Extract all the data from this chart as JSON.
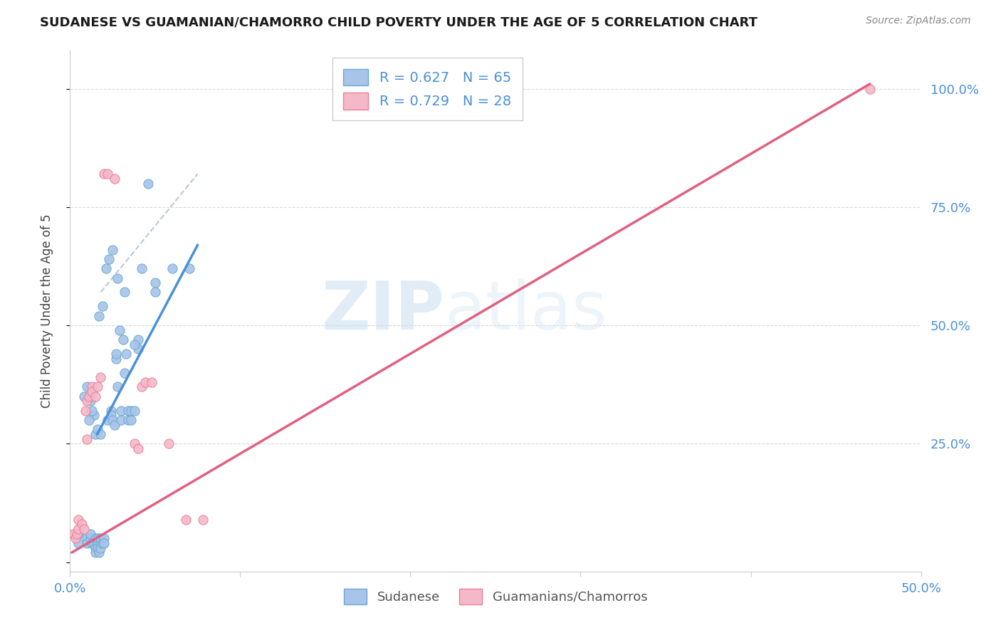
{
  "title": "SUDANESE VS GUAMANIAN/CHAMORRO CHILD POVERTY UNDER THE AGE OF 5 CORRELATION CHART",
  "source": "Source: ZipAtlas.com",
  "ylabel": "Child Poverty Under the Age of 5",
  "xlim": [
    0.0,
    0.5
  ],
  "ylim": [
    -0.02,
    1.08
  ],
  "watermark_zip": "ZIP",
  "watermark_atlas": "atlas",
  "sudanese_face_color": "#a8c4e8",
  "sudanese_edge_color": "#6aaad4",
  "guamanian_face_color": "#f5b8c8",
  "guamanian_edge_color": "#e8809a",
  "trend_blue_color": "#4a90d9",
  "trend_pink_color": "#e06080",
  "trend_dashed_color": "#b8c8d8",
  "sudanese_points": [
    [
      0.005,
      0.04
    ],
    [
      0.005,
      0.06
    ],
    [
      0.01,
      0.05
    ],
    [
      0.01,
      0.04
    ],
    [
      0.012,
      0.05
    ],
    [
      0.012,
      0.06
    ],
    [
      0.013,
      0.04
    ],
    [
      0.014,
      0.04
    ],
    [
      0.015,
      0.05
    ],
    [
      0.015,
      0.03
    ],
    [
      0.015,
      0.02
    ],
    [
      0.016,
      0.04
    ],
    [
      0.016,
      0.03
    ],
    [
      0.016,
      0.05
    ],
    [
      0.017,
      0.02
    ],
    [
      0.018,
      0.04
    ],
    [
      0.018,
      0.05
    ],
    [
      0.018,
      0.03
    ],
    [
      0.019,
      0.04
    ],
    [
      0.02,
      0.05
    ],
    [
      0.02,
      0.04
    ],
    [
      0.022,
      0.3
    ],
    [
      0.024,
      0.32
    ],
    [
      0.024,
      0.31
    ],
    [
      0.025,
      0.3
    ],
    [
      0.026,
      0.29
    ],
    [
      0.027,
      0.43
    ],
    [
      0.027,
      0.44
    ],
    [
      0.028,
      0.37
    ],
    [
      0.029,
      0.49
    ],
    [
      0.03,
      0.32
    ],
    [
      0.03,
      0.3
    ],
    [
      0.031,
      0.47
    ],
    [
      0.032,
      0.57
    ],
    [
      0.032,
      0.4
    ],
    [
      0.034,
      0.3
    ],
    [
      0.034,
      0.32
    ],
    [
      0.036,
      0.32
    ],
    [
      0.036,
      0.3
    ],
    [
      0.038,
      0.32
    ],
    [
      0.04,
      0.47
    ],
    [
      0.04,
      0.45
    ],
    [
      0.042,
      0.62
    ],
    [
      0.046,
      0.8
    ],
    [
      0.05,
      0.59
    ],
    [
      0.05,
      0.57
    ],
    [
      0.06,
      0.62
    ],
    [
      0.07,
      0.62
    ],
    [
      0.008,
      0.35
    ],
    [
      0.01,
      0.37
    ],
    [
      0.012,
      0.34
    ],
    [
      0.014,
      0.31
    ],
    [
      0.013,
      0.32
    ],
    [
      0.011,
      0.3
    ],
    [
      0.015,
      0.27
    ],
    [
      0.016,
      0.28
    ],
    [
      0.018,
      0.27
    ],
    [
      0.017,
      0.52
    ],
    [
      0.019,
      0.54
    ],
    [
      0.021,
      0.62
    ],
    [
      0.023,
      0.64
    ],
    [
      0.025,
      0.66
    ],
    [
      0.028,
      0.6
    ],
    [
      0.033,
      0.44
    ],
    [
      0.038,
      0.46
    ]
  ],
  "guamanian_points": [
    [
      0.002,
      0.06
    ],
    [
      0.003,
      0.05
    ],
    [
      0.004,
      0.06
    ],
    [
      0.005,
      0.07
    ],
    [
      0.005,
      0.09
    ],
    [
      0.007,
      0.08
    ],
    [
      0.008,
      0.07
    ],
    [
      0.009,
      0.32
    ],
    [
      0.01,
      0.34
    ],
    [
      0.011,
      0.35
    ],
    [
      0.013,
      0.37
    ],
    [
      0.013,
      0.36
    ],
    [
      0.015,
      0.35
    ],
    [
      0.016,
      0.37
    ],
    [
      0.018,
      0.39
    ],
    [
      0.02,
      0.82
    ],
    [
      0.022,
      0.82
    ],
    [
      0.026,
      0.81
    ],
    [
      0.038,
      0.25
    ],
    [
      0.04,
      0.24
    ],
    [
      0.042,
      0.37
    ],
    [
      0.044,
      0.38
    ],
    [
      0.048,
      0.38
    ],
    [
      0.058,
      0.25
    ],
    [
      0.068,
      0.09
    ],
    [
      0.078,
      0.09
    ],
    [
      0.47,
      1.0
    ],
    [
      0.01,
      0.26
    ]
  ],
  "blue_trend_x": [
    0.016,
    0.075
  ],
  "blue_trend_y": [
    0.27,
    0.67
  ],
  "pink_trend_x": [
    0.001,
    0.47
  ],
  "pink_trend_y": [
    0.02,
    1.01
  ],
  "dashed_trend_x": [
    0.018,
    0.075
  ],
  "dashed_trend_y": [
    0.57,
    0.82
  ],
  "xticks": [
    0.0,
    0.1,
    0.2,
    0.3,
    0.4,
    0.5
  ],
  "xticklabels": [
    "0.0%",
    "",
    "",
    "",
    "",
    "50.0%"
  ],
  "yticks_right": [
    0.25,
    0.5,
    0.75,
    1.0
  ],
  "yticklabels_right": [
    "25.0%",
    "50.0%",
    "75.0%",
    "100.0%"
  ],
  "tick_color": "#4a90d9",
  "grid_color": "#d8d8d8",
  "legend_face_blue": "#a8c4e8",
  "legend_face_pink": "#f5b8c8",
  "legend_edge_blue": "#6aaad4",
  "legend_edge_pink": "#e8809a",
  "legend_label_1": "R = 0.627   N = 65",
  "legend_label_2": "R = 0.729   N = 28",
  "bottom_label_1": "Sudanese",
  "bottom_label_2": "Guamanians/Chamorros"
}
